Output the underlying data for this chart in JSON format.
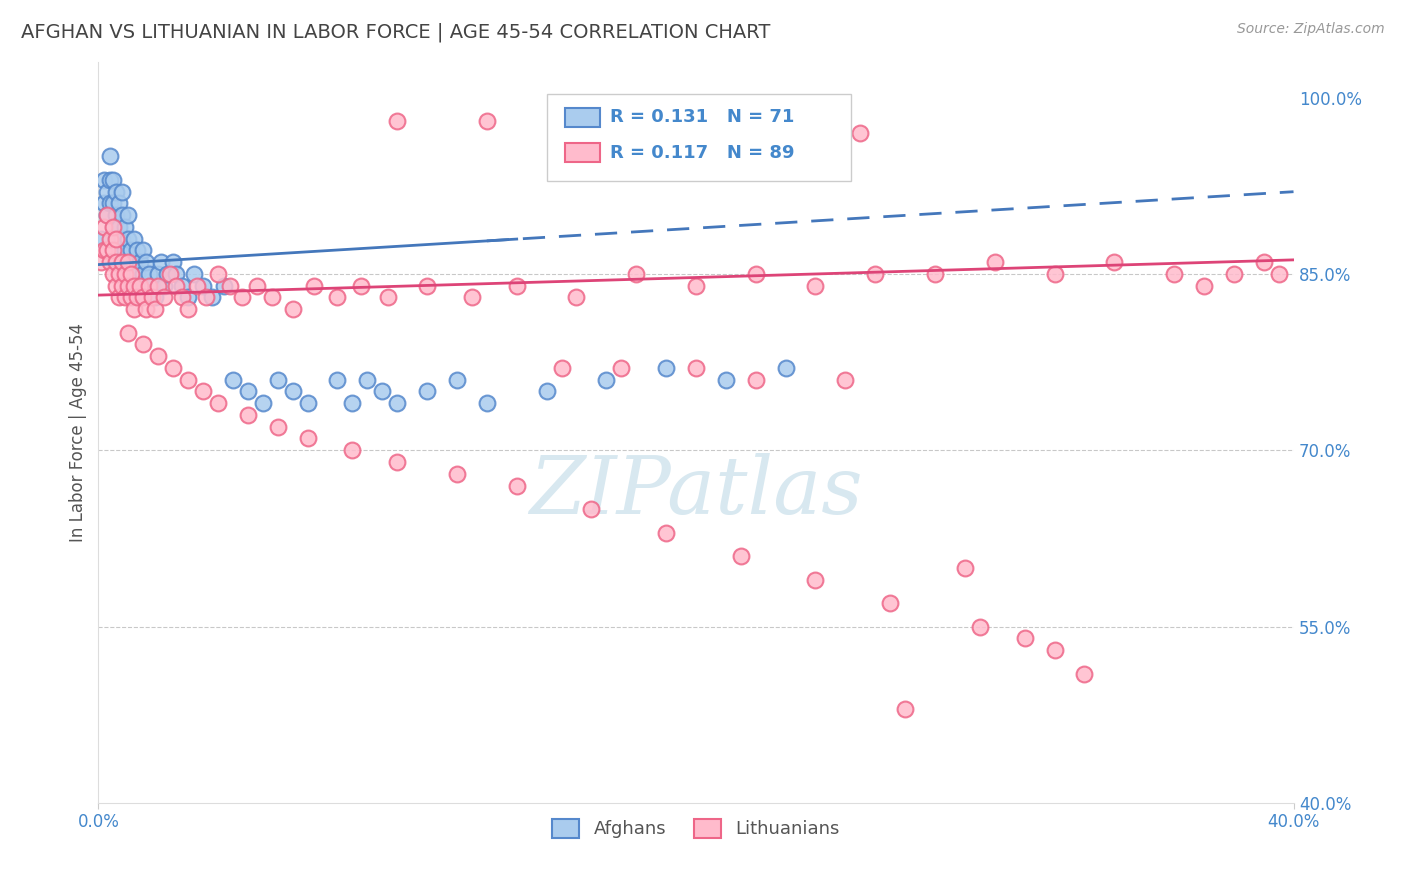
{
  "title": "AFGHAN VS LITHUANIAN IN LABOR FORCE | AGE 45-54 CORRELATION CHART",
  "source_text": "Source: ZipAtlas.com",
  "ylabel": "In Labor Force | Age 45-54",
  "xlim": [
    0.0,
    0.4
  ],
  "ylim": [
    0.4,
    1.03
  ],
  "ytick_labels": [
    "100.0%",
    "85.0%",
    "70.0%",
    "55.0%",
    "40.0%"
  ],
  "yticks": [
    1.0,
    0.85,
    0.7,
    0.55,
    0.4
  ],
  "legend_r1": "R = 0.131",
  "legend_n1": "N = 71",
  "legend_r2": "R = 0.117",
  "legend_n2": "N = 89",
  "afghan_edge_color": "#5588cc",
  "afghan_fill_color": "#aaccee",
  "lith_edge_color": "#ee6688",
  "lith_fill_color": "#ffbbcc",
  "afghan_line_color": "#4477bb",
  "lith_line_color": "#dd4477",
  "axis_label_color": "#4488cc",
  "title_color": "#444444",
  "source_color": "#999999",
  "grid_color": "#bbbbbb",
  "watermark_color": "#d8e8f0",
  "afghans_x": [
    0.001,
    0.002,
    0.002,
    0.003,
    0.003,
    0.004,
    0.004,
    0.004,
    0.005,
    0.005,
    0.005,
    0.006,
    0.006,
    0.006,
    0.007,
    0.007,
    0.007,
    0.008,
    0.008,
    0.008,
    0.008,
    0.009,
    0.009,
    0.01,
    0.01,
    0.01,
    0.011,
    0.011,
    0.012,
    0.012,
    0.013,
    0.013,
    0.014,
    0.014,
    0.015,
    0.015,
    0.016,
    0.017,
    0.018,
    0.019,
    0.02,
    0.021,
    0.022,
    0.023,
    0.025,
    0.026,
    0.028,
    0.03,
    0.032,
    0.035,
    0.038,
    0.042,
    0.045,
    0.05,
    0.055,
    0.06,
    0.065,
    0.07,
    0.08,
    0.085,
    0.09,
    0.095,
    0.1,
    0.11,
    0.12,
    0.13,
    0.15,
    0.17,
    0.19,
    0.21,
    0.23
  ],
  "afghans_y": [
    0.88,
    0.91,
    0.93,
    0.9,
    0.92,
    0.91,
    0.93,
    0.95,
    0.89,
    0.91,
    0.93,
    0.88,
    0.9,
    0.92,
    0.87,
    0.89,
    0.91,
    0.86,
    0.88,
    0.9,
    0.92,
    0.87,
    0.89,
    0.86,
    0.88,
    0.9,
    0.85,
    0.87,
    0.86,
    0.88,
    0.85,
    0.87,
    0.84,
    0.86,
    0.85,
    0.87,
    0.86,
    0.85,
    0.84,
    0.83,
    0.85,
    0.86,
    0.84,
    0.85,
    0.86,
    0.85,
    0.84,
    0.83,
    0.85,
    0.84,
    0.83,
    0.84,
    0.76,
    0.75,
    0.74,
    0.76,
    0.75,
    0.74,
    0.76,
    0.74,
    0.76,
    0.75,
    0.74,
    0.75,
    0.76,
    0.74,
    0.75,
    0.76,
    0.77,
    0.76,
    0.77
  ],
  "lithuanians_x": [
    0.001,
    0.002,
    0.002,
    0.003,
    0.003,
    0.004,
    0.004,
    0.005,
    0.005,
    0.005,
    0.006,
    0.006,
    0.006,
    0.007,
    0.007,
    0.008,
    0.008,
    0.009,
    0.009,
    0.01,
    0.01,
    0.011,
    0.011,
    0.012,
    0.012,
    0.013,
    0.014,
    0.015,
    0.016,
    0.017,
    0.018,
    0.019,
    0.02,
    0.022,
    0.024,
    0.026,
    0.028,
    0.03,
    0.033,
    0.036,
    0.04,
    0.044,
    0.048,
    0.053,
    0.058,
    0.065,
    0.072,
    0.08,
    0.088,
    0.097,
    0.11,
    0.125,
    0.14,
    0.16,
    0.18,
    0.2,
    0.22,
    0.24,
    0.26,
    0.28,
    0.3,
    0.32,
    0.34,
    0.36,
    0.37,
    0.38,
    0.39,
    0.395,
    0.01,
    0.015,
    0.02,
    0.025,
    0.03,
    0.035,
    0.04,
    0.05,
    0.06,
    0.07,
    0.085,
    0.1,
    0.12,
    0.14,
    0.165,
    0.19,
    0.215,
    0.24,
    0.265,
    0.295,
    0.32
  ],
  "lithuanians_y": [
    0.86,
    0.87,
    0.89,
    0.87,
    0.9,
    0.86,
    0.88,
    0.85,
    0.87,
    0.89,
    0.84,
    0.86,
    0.88,
    0.83,
    0.85,
    0.84,
    0.86,
    0.83,
    0.85,
    0.84,
    0.86,
    0.83,
    0.85,
    0.82,
    0.84,
    0.83,
    0.84,
    0.83,
    0.82,
    0.84,
    0.83,
    0.82,
    0.84,
    0.83,
    0.85,
    0.84,
    0.83,
    0.82,
    0.84,
    0.83,
    0.85,
    0.84,
    0.83,
    0.84,
    0.83,
    0.82,
    0.84,
    0.83,
    0.84,
    0.83,
    0.84,
    0.83,
    0.84,
    0.83,
    0.85,
    0.84,
    0.85,
    0.84,
    0.85,
    0.85,
    0.86,
    0.85,
    0.86,
    0.85,
    0.84,
    0.85,
    0.86,
    0.85,
    0.8,
    0.79,
    0.78,
    0.77,
    0.76,
    0.75,
    0.74,
    0.73,
    0.72,
    0.71,
    0.7,
    0.69,
    0.68,
    0.67,
    0.65,
    0.63,
    0.61,
    0.59,
    0.57,
    0.55,
    0.53
  ],
  "lith_outliers_x": [
    0.1,
    0.13,
    0.155,
    0.175,
    0.2,
    0.225,
    0.255,
    0.155,
    0.175,
    0.2,
    0.22,
    0.25,
    0.27,
    0.29,
    0.31,
    0.33
  ],
  "lith_outliers_y": [
    0.98,
    0.98,
    0.98,
    0.98,
    0.97,
    0.97,
    0.97,
    0.77,
    0.77,
    0.77,
    0.76,
    0.76,
    0.48,
    0.6,
    0.54,
    0.51
  ],
  "afghan_line_intercept": 0.858,
  "afghan_line_slope": 0.155,
  "lith_line_intercept": 0.832,
  "lith_line_slope": 0.075
}
